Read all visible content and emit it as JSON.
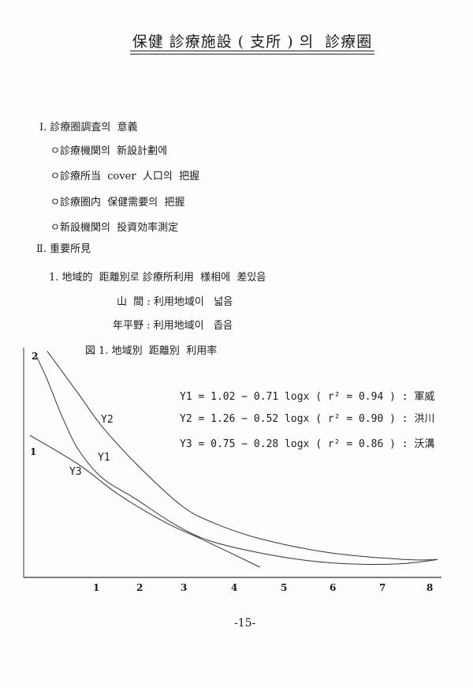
{
  "title": "保健 診療施設 ( 支所 ) 의  診療圈",
  "section1": {
    "heading": "Ⅰ. 診療圈調査의  意義",
    "bullets": [
      "ㅇ診療機関의  新設計劃에",
      "ㅇ診療所当  cover  人口의  把握",
      "ㅇ診療圈内  保健需要의  把握",
      "ㅇ新設機関의  投資効率測定"
    ]
  },
  "section2": {
    "heading": "Ⅱ. 重要所見",
    "item1": "1. 地域的  距離別로 診療所利用  様相에  差있음",
    "sub": [
      "山  間 : 利用地域이   넓음",
      "年平野 : 利用地域이   좁음"
    ],
    "figure_caption": "図 1. 地域別  距離別  利用率"
  },
  "chart_data": {
    "type": "line",
    "title": "図 1. 地域別  距離別  利用率",
    "xlabel": "",
    "ylabel": "",
    "x_ticks": [
      "1",
      "2",
      "3",
      "4",
      "5",
      "6",
      "7",
      "8"
    ],
    "y_labels": [
      "2",
      "1"
    ],
    "grid": false,
    "equations": [
      {
        "name": "Y1",
        "text": "= 1.02 − 0.71 logx ( r² = 0.94 ) : 軍威"
      },
      {
        "name": "Y2",
        "text": "= 1.26 − 0.52 logx ( r² = 0.90 ) : 洪川"
      },
      {
        "name": "Y3",
        "text": "= 0.75 − 0.28 logx ( r² = 0.86 ) : 沃溝"
      }
    ],
    "series": [
      {
        "name": "Y2",
        "x": [
          -0.03,
          0.64,
          1.13,
          1.88,
          2.79,
          3.45,
          4.44,
          5.93,
          7.51,
          8.17
        ],
        "y": [
          2.38,
          1.92,
          1.58,
          1.17,
          0.75,
          0.57,
          0.4,
          0.25,
          0.18,
          0.18
        ]
      },
      {
        "name": "Y1",
        "x": [
          -0.26,
          -0.03,
          0.3,
          0.64,
          1.13,
          1.8,
          2.62,
          3.37,
          4.44,
          5.6,
          6.6,
          7.51,
          8.17
        ],
        "y": [
          2.33,
          2.08,
          1.67,
          1.33,
          1.04,
          0.83,
          0.56,
          0.38,
          0.25,
          0.16,
          0.13,
          0.14,
          0.18
        ]
      },
      {
        "name": "Y3",
        "x": [
          -0.39,
          0.64,
          1.46,
          2.46,
          3.28,
          4.44
        ],
        "y": [
          1.49,
          1.18,
          0.87,
          0.57,
          0.38,
          0.1
        ]
      }
    ]
  },
  "page_number": "-15-"
}
